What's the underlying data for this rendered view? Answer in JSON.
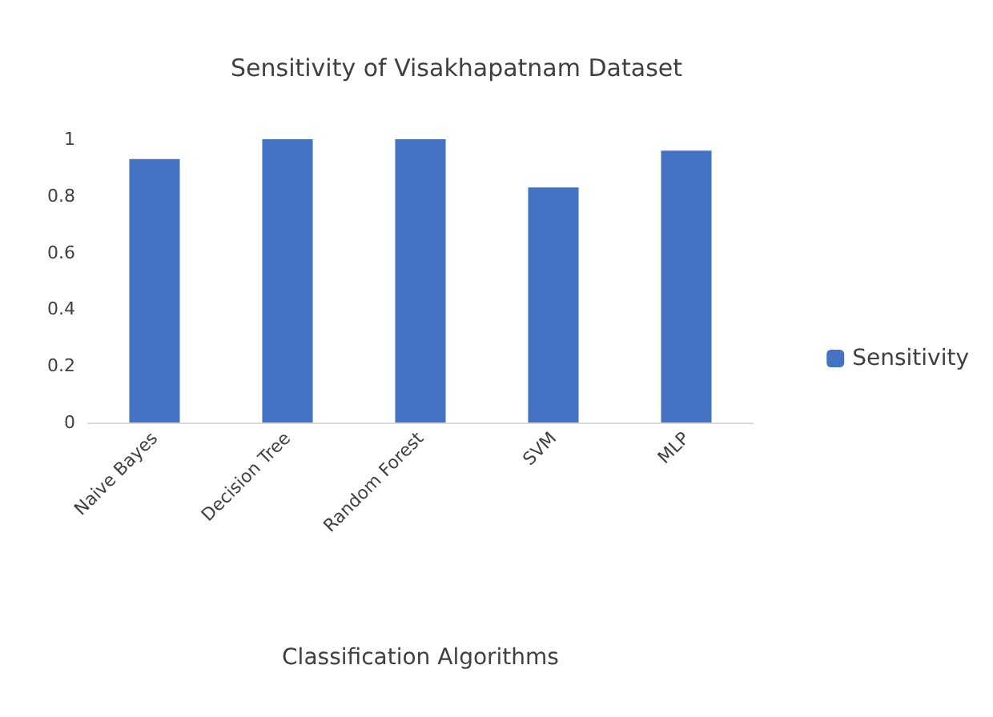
{
  "chart_data": {
    "type": "bar",
    "title": "Sensitivity of Visakhapatnam Dataset",
    "xlabel": "Classification Algorithms",
    "categories": [
      "Naive Bayes",
      "Decision Tree",
      "Random Forest",
      "SVM",
      "MLP"
    ],
    "series": [
      {
        "name": "Sensitivity",
        "color": "#4472c4",
        "values": [
          0.93,
          1,
          1,
          0.83,
          0.96
        ]
      }
    ],
    "ylim": [
      0,
      1
    ],
    "yticks": [
      0,
      0.2,
      0.4,
      0.6,
      0.8,
      1
    ],
    "grid": false,
    "legend": "right"
  }
}
